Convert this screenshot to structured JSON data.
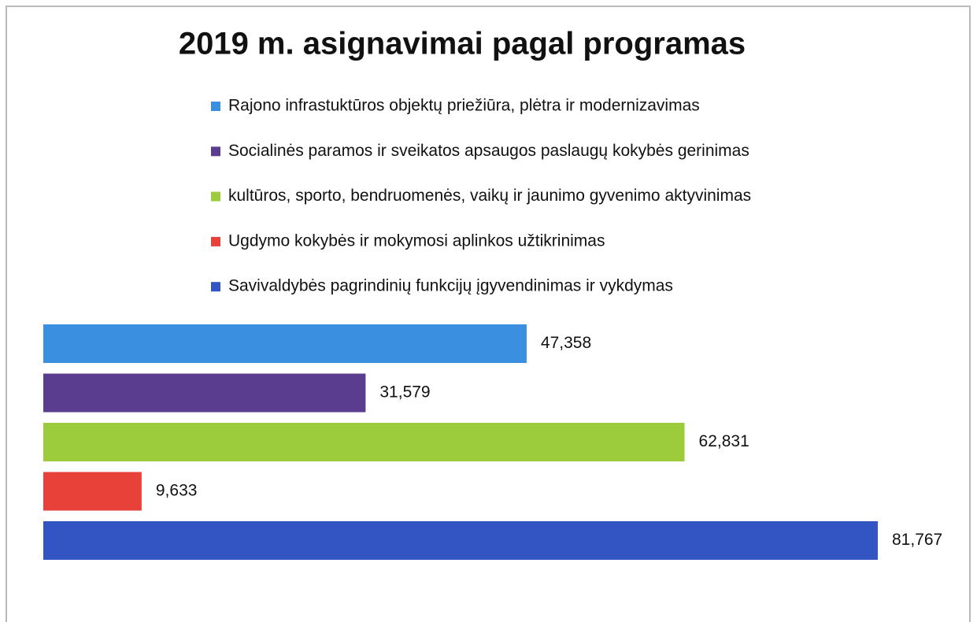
{
  "chart_data": {
    "type": "bar",
    "orientation": "horizontal",
    "title": "2019 m. asignavimai pagal programas",
    "legend": "top",
    "series": [
      {
        "name": "Rajono infrastuktūros objektų priežiūra, plėtra ir modernizavimas",
        "color": "#3b8fe0",
        "values": [
          47358
        ],
        "value_labels": [
          "47,358"
        ]
      },
      {
        "name": "Socialinės paramos ir sveikatos apsaugos paslaugų kokybės gerinimas",
        "color": "#5b3d8f",
        "values": [
          31579
        ],
        "value_labels": [
          "31,579"
        ]
      },
      {
        "name": "kultūros, sporto, bendruomenės, vaikų ir jaunimo gyvenimo aktyvinimas",
        "color": "#9ccb3b",
        "values": [
          62831
        ],
        "value_labels": [
          "62,831"
        ]
      },
      {
        "name": "Ugdymo kokybės ir mokymosi aplinkos užtikrinimas",
        "color": "#e8413a",
        "values": [
          9633
        ],
        "value_labels": [
          "9,633"
        ]
      },
      {
        "name": "Savivaldybės pagrindinių funkcijų įgyvendinimas ir vykdymas",
        "color": "#3355c4",
        "values": [
          81767
        ],
        "value_labels": [
          "81,767"
        ]
      }
    ]
  }
}
